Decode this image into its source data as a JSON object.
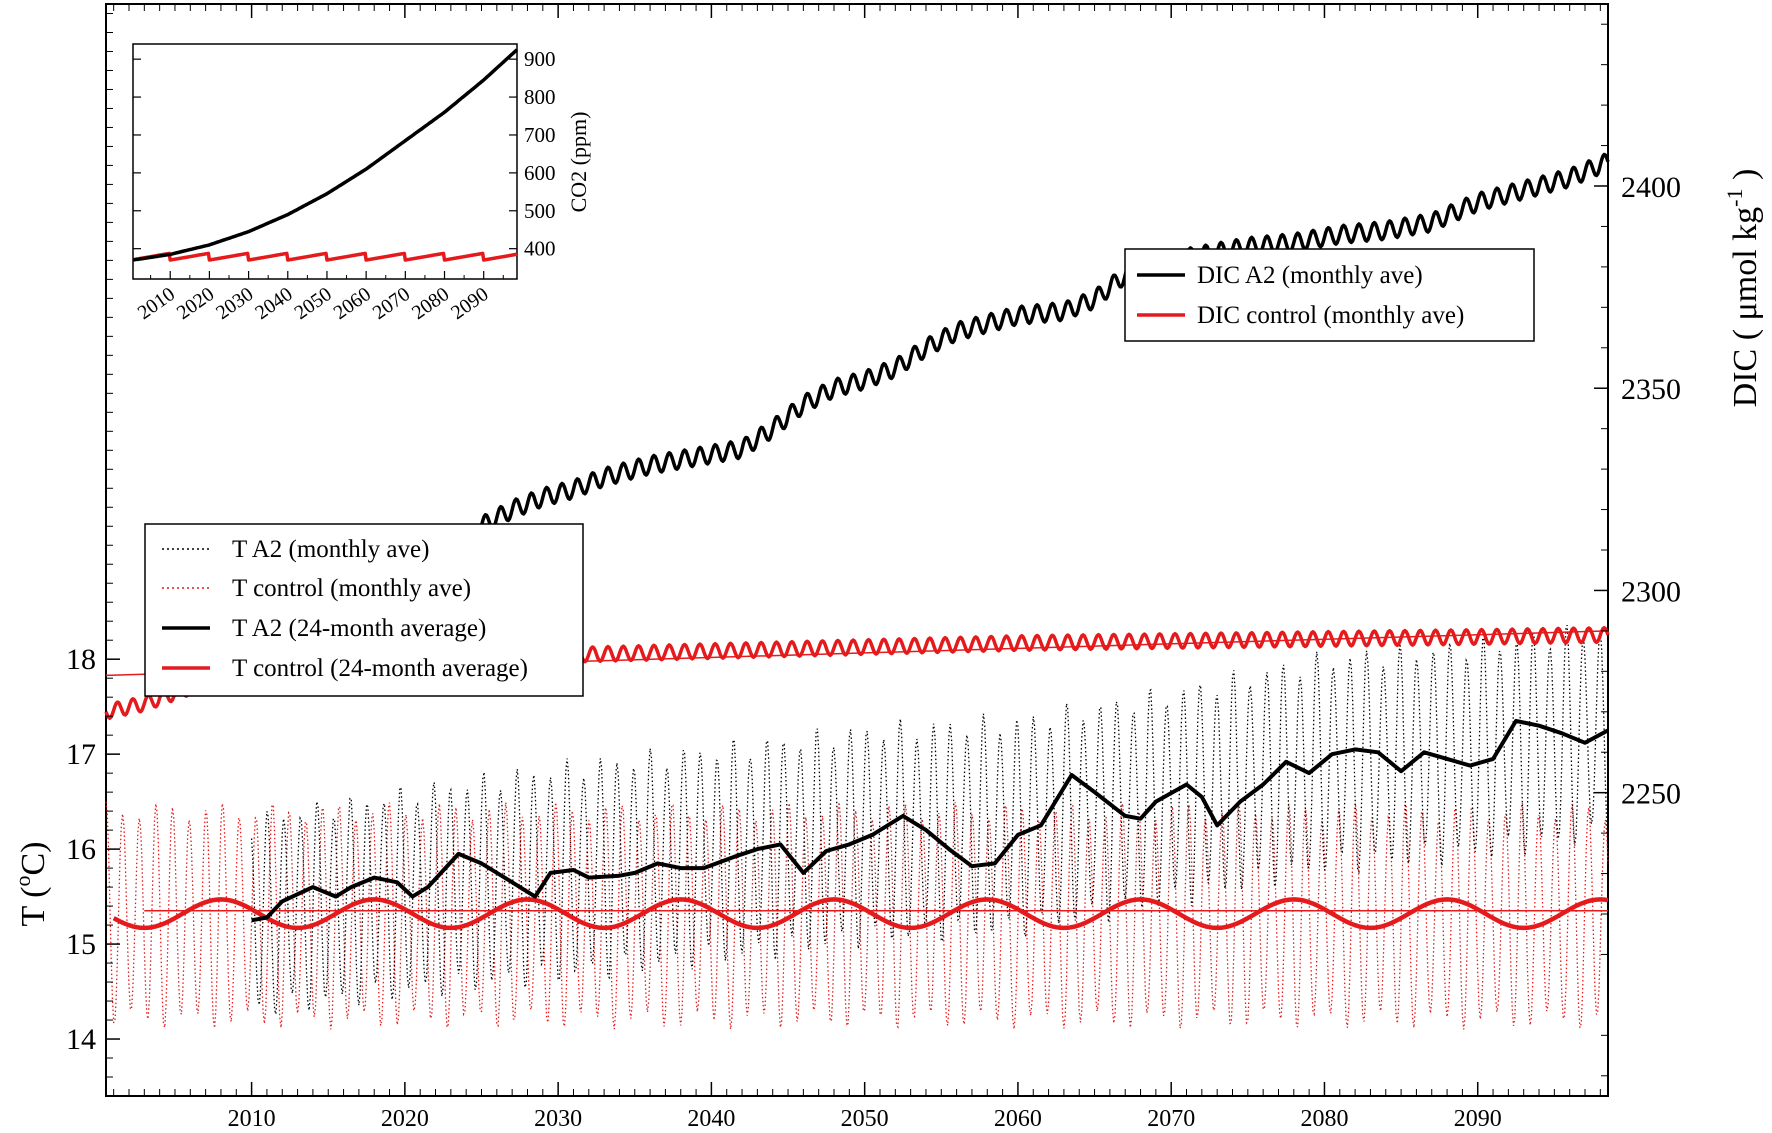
{
  "chart_data": [
    {
      "type": "line",
      "panel": "main",
      "x_axis": {
        "min": 2000.5,
        "max": 2098.5,
        "ticks": [
          2010,
          2020,
          2030,
          2040,
          2050,
          2060,
          2070,
          2080,
          2090
        ],
        "labels": [
          "2010",
          "2020",
          "2030",
          "2040",
          "2050",
          "2060",
          "2070",
          "2080",
          "2090"
        ]
      },
      "left_axis": {
        "label_main": "T (",
        "label_sup": "o",
        "label_end": "C)",
        "min": 13.4,
        "max": 24.9,
        "ticks": [
          14,
          15,
          16,
          17,
          18
        ],
        "labels": [
          "14",
          "15",
          "16",
          "17",
          "18"
        ]
      },
      "right_axis": {
        "label_main": "DIC ( μmol kg",
        "label_sup": "-1",
        "label_end": " )",
        "min": 2175,
        "max": 2445,
        "ticks": [
          2250,
          2300,
          2350,
          2400
        ],
        "labels": [
          "2250",
          "2300",
          "2350",
          "2400"
        ]
      },
      "series": {
        "dic_a2": {
          "name": "DIC A2 (monthly ave)",
          "color": "#000000",
          "start": 2010,
          "end": 2098.5,
          "seasonal_amplitude": 2.2,
          "points": [
            [
              2010,
              2283
            ],
            [
              2013,
              2282
            ],
            [
              2015,
              2285
            ],
            [
              2017,
              2290
            ],
            [
              2019,
              2296
            ],
            [
              2021,
              2303
            ],
            [
              2023,
              2310
            ],
            [
              2025,
              2316
            ],
            [
              2027,
              2320
            ],
            [
              2029,
              2323
            ],
            [
              2031,
              2325
            ],
            [
              2033,
              2328
            ],
            [
              2036,
              2331
            ],
            [
              2039,
              2333
            ],
            [
              2042,
              2335
            ],
            [
              2044,
              2340
            ],
            [
              2046,
              2346
            ],
            [
              2048,
              2350
            ],
            [
              2050,
              2352
            ],
            [
              2052,
              2355
            ],
            [
              2054,
              2360
            ],
            [
              2056,
              2364
            ],
            [
              2058,
              2366
            ],
            [
              2060,
              2368
            ],
            [
              2063,
              2369
            ],
            [
              2065,
              2372
            ],
            [
              2067,
              2378
            ],
            [
              2069,
              2381
            ],
            [
              2072,
              2383
            ],
            [
              2075,
              2385
            ],
            [
              2078,
              2386
            ],
            [
              2081,
              2388
            ],
            [
              2084,
              2389
            ],
            [
              2087,
              2391
            ],
            [
              2090,
              2396
            ],
            [
              2092,
              2398
            ],
            [
              2094,
              2400
            ],
            [
              2096,
              2402
            ],
            [
              2098.5,
              2406
            ]
          ]
        },
        "dic_control": {
          "name": "DIC control (monthly ave)",
          "color": "#e41a1c",
          "start": 2000.5,
          "end": 2098.5,
          "seasonal_amplitude": 1.8,
          "points": [
            [
              2000.5,
              2270
            ],
            [
              2003,
              2272
            ],
            [
              2006,
              2276
            ],
            [
              2009,
              2279
            ],
            [
              2012,
              2281
            ],
            [
              2015,
              2282
            ],
            [
              2020,
              2283
            ],
            [
              2030,
              2284
            ],
            [
              2040,
              2285
            ],
            [
              2050,
              2286
            ],
            [
              2060,
              2287
            ],
            [
              2070,
              2287.5
            ],
            [
              2080,
              2288
            ],
            [
              2090,
              2288.5
            ],
            [
              2098.5,
              2289
            ]
          ]
        },
        "dic_control_trend": {
          "color": "#e41a1c",
          "points": [
            [
              2000.5,
              2279
            ],
            [
              2098.5,
              2290
            ]
          ]
        },
        "t_a2_monthly": {
          "name": "T A2 (monthly ave)",
          "color": "#000000",
          "start": 2010,
          "end": 2098.5,
          "mean_points": [
            [
              2010,
              15.3
            ],
            [
              2020,
              15.55
            ],
            [
              2030,
              15.75
            ],
            [
              2040,
              15.95
            ],
            [
              2050,
              16.15
            ],
            [
              2060,
              16.25
            ],
            [
              2070,
              16.55
            ],
            [
              2080,
              16.9
            ],
            [
              2090,
              17.05
            ],
            [
              2098.5,
              17.25
            ]
          ],
          "amplitude_points": [
            [
              2010,
              1.1
            ],
            [
              2030,
              1.2
            ],
            [
              2050,
              1.2
            ],
            [
              2070,
              1.2
            ],
            [
              2098.5,
              1.2
            ]
          ]
        },
        "t_control_monthly": {
          "name": "T control (monthly ave)",
          "color": "#e41a1c",
          "start": 2000.5,
          "end": 2098.5,
          "mean": 15.3,
          "amplitude": 1.2
        },
        "t_a2_24mo": {
          "name": "T A2 (24-month average)",
          "color": "#000000",
          "points": [
            [
              2010,
              15.25
            ],
            [
              2011,
              15.28
            ],
            [
              2012,
              15.45
            ],
            [
              2014,
              15.6
            ],
            [
              2015.5,
              15.5
            ],
            [
              2016.5,
              15.6
            ],
            [
              2018,
              15.7
            ],
            [
              2019.5,
              15.65
            ],
            [
              2020.5,
              15.5
            ],
            [
              2021.5,
              15.6
            ],
            [
              2023.5,
              15.95
            ],
            [
              2025,
              15.85
            ],
            [
              2027,
              15.65
            ],
            [
              2028.5,
              15.5
            ],
            [
              2029.5,
              15.75
            ],
            [
              2031,
              15.78
            ],
            [
              2032,
              15.7
            ],
            [
              2034,
              15.72
            ],
            [
              2035,
              15.75
            ],
            [
              2036.5,
              15.85
            ],
            [
              2038,
              15.8
            ],
            [
              2039.5,
              15.8
            ],
            [
              2041.5,
              15.92
            ],
            [
              2043,
              16.0
            ],
            [
              2044.5,
              16.05
            ],
            [
              2046,
              15.75
            ],
            [
              2047.5,
              15.98
            ],
            [
              2049,
              16.05
            ],
            [
              2050.5,
              16.15
            ],
            [
              2052.5,
              16.35
            ],
            [
              2054,
              16.2
            ],
            [
              2055.5,
              16.0
            ],
            [
              2057,
              15.82
            ],
            [
              2058.5,
              15.85
            ],
            [
              2060,
              16.15
            ],
            [
              2061.5,
              16.25
            ],
            [
              2063.5,
              16.78
            ],
            [
              2065,
              16.6
            ],
            [
              2067,
              16.35
            ],
            [
              2068,
              16.32
            ],
            [
              2069,
              16.5
            ],
            [
              2071,
              16.68
            ],
            [
              2072,
              16.55
            ],
            [
              2073,
              16.25
            ],
            [
              2074.5,
              16.5
            ],
            [
              2076,
              16.68
            ],
            [
              2077.5,
              16.92
            ],
            [
              2079,
              16.8
            ],
            [
              2080.5,
              17.0
            ],
            [
              2082,
              17.05
            ],
            [
              2083.5,
              17.02
            ],
            [
              2085,
              16.82
            ],
            [
              2086.5,
              17.02
            ],
            [
              2088,
              16.95
            ],
            [
              2089.5,
              16.88
            ],
            [
              2091,
              16.95
            ],
            [
              2092.5,
              17.35
            ],
            [
              2094,
              17.3
            ],
            [
              2095.5,
              17.22
            ],
            [
              2097,
              17.12
            ],
            [
              2098.5,
              17.25
            ]
          ]
        },
        "t_control_24mo": {
          "name": "T control (24-month average)",
          "color": "#e41a1c",
          "start": 2001,
          "end": 2098.5,
          "mean": 15.32,
          "amplitude": 0.15,
          "period": 10
        },
        "t_control_mean_line": {
          "color": "#e41a1c",
          "points": [
            [
              2003,
              15.35
            ],
            [
              2098.5,
              15.35
            ]
          ]
        }
      }
    },
    {
      "type": "line",
      "panel": "inset",
      "x_axis": {
        "min": 2000.5,
        "max": 2098.5,
        "ticks": [
          2010,
          2020,
          2030,
          2040,
          2050,
          2060,
          2070,
          2080,
          2090
        ],
        "labels": [
          "2010",
          "2020",
          "2030",
          "2040",
          "2050",
          "2060",
          "2070",
          "2080",
          "2090"
        ]
      },
      "y_axis": {
        "label": "CO2 (ppm)",
        "min": 320,
        "max": 940,
        "ticks": [
          400,
          500,
          600,
          700,
          800,
          900
        ],
        "labels": [
          "400",
          "500",
          "600",
          "700",
          "800",
          "900"
        ]
      },
      "series": {
        "co2_a2": {
          "color": "#000000",
          "points": [
            [
              2000.5,
              370
            ],
            [
              2010,
              385
            ],
            [
              2020,
              410
            ],
            [
              2030,
              445
            ],
            [
              2040,
              490
            ],
            [
              2050,
              545
            ],
            [
              2060,
              610
            ],
            [
              2070,
              685
            ],
            [
              2080,
              760
            ],
            [
              2090,
              845
            ],
            [
              2098.5,
              925
            ]
          ]
        },
        "co2_control": {
          "color": "#e41a1c",
          "base": 370,
          "rise": 18,
          "period": 10
        }
      }
    }
  ],
  "legends": {
    "dic": [
      "DIC A2 (monthly ave)",
      "DIC control (monthly ave)"
    ],
    "temp": [
      "T A2 (monthly ave)",
      "T control (monthly ave)",
      "T A2 (24-month average)",
      "T control (24-month average)"
    ]
  }
}
